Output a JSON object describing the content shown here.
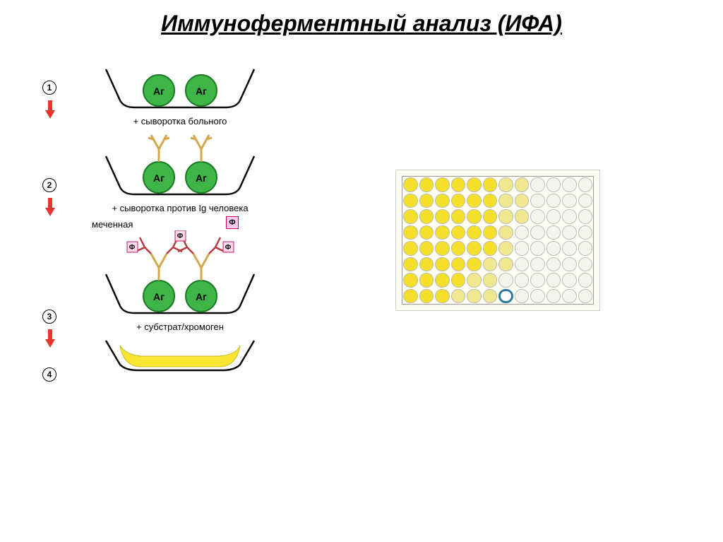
{
  "title": "Иммуноферментный анализ (ИФА)",
  "colors": {
    "antigen_fill": "#3fb548",
    "antigen_stroke": "#1a7a25",
    "antibody": "#d4a84d",
    "antibody2": "#b8393d",
    "enzyme_box_fill": "#f8d7e8",
    "enzyme_box_stroke": "#c4186e",
    "arrow_fill": "#e8332e",
    "well_stroke": "#0a0a0a",
    "result_fill": "#f9e532",
    "plate_bg": "#fffef5",
    "plate_well_filled": "#f4e02a",
    "plate_well_empty": "#f5f5f0",
    "plate_grid": "#999999"
  },
  "antigen_label": "Аг",
  "enzyme_symbol": "Ф",
  "steps": [
    {
      "num": "1",
      "label": "+ сыворотка больного"
    },
    {
      "num": "2",
      "label": "+ сыворотка против Ig человека"
    },
    {
      "num": "3",
      "label_above": "меченная",
      "label": "+ субстрат/хромоген"
    },
    {
      "num": "4",
      "label": ""
    }
  ],
  "plate": {
    "rows": 8,
    "cols": 12,
    "wells": [
      [
        1,
        1,
        1,
        1,
        1,
        1,
        2,
        2,
        0,
        0,
        0,
        0
      ],
      [
        1,
        1,
        1,
        1,
        1,
        1,
        2,
        2,
        0,
        0,
        0,
        0
      ],
      [
        1,
        1,
        1,
        1,
        1,
        1,
        2,
        2,
        0,
        0,
        0,
        0
      ],
      [
        1,
        1,
        1,
        1,
        1,
        1,
        2,
        0,
        0,
        0,
        0,
        0
      ],
      [
        1,
        1,
        1,
        1,
        1,
        1,
        2,
        0,
        0,
        0,
        0,
        0
      ],
      [
        1,
        1,
        1,
        1,
        1,
        2,
        2,
        0,
        0,
        0,
        0,
        0
      ],
      [
        1,
        1,
        1,
        1,
        2,
        2,
        0,
        0,
        0,
        0,
        0,
        0
      ],
      [
        1,
        1,
        1,
        2,
        2,
        2,
        3,
        0,
        0,
        0,
        0,
        0
      ]
    ]
  }
}
